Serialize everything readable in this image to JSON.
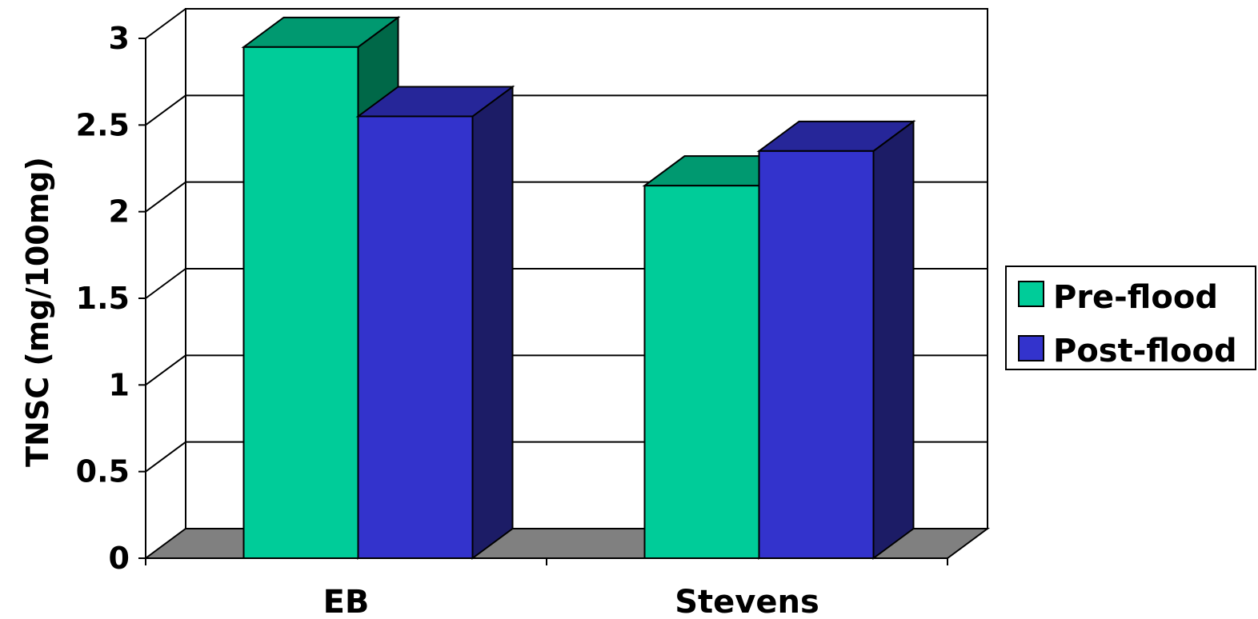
{
  "chart_data": {
    "type": "bar",
    "title": "",
    "xlabel": "",
    "ylabel": "TNSC (mg/100mg)",
    "categories": [
      "EB",
      "Stevens"
    ],
    "series": [
      {
        "name": "Pre-flood",
        "values": [
          2.95,
          2.15
        ]
      },
      {
        "name": "Post-flood",
        "values": [
          2.55,
          2.35
        ]
      }
    ],
    "ylim": [
      0,
      3
    ],
    "yticks": [
      "0",
      "0.5",
      "1",
      "1.5",
      "2",
      "2.5",
      "3"
    ],
    "grid": true,
    "legend_position": "right",
    "three_d": true
  },
  "colors": {
    "pre_front": "#00CC99",
    "pre_top": "#009970",
    "pre_side": "#006848",
    "post_front": "#3333CC",
    "post_top": "#262699",
    "post_side": "#1C1C66",
    "floor": "#808080",
    "grid": "#000000"
  }
}
